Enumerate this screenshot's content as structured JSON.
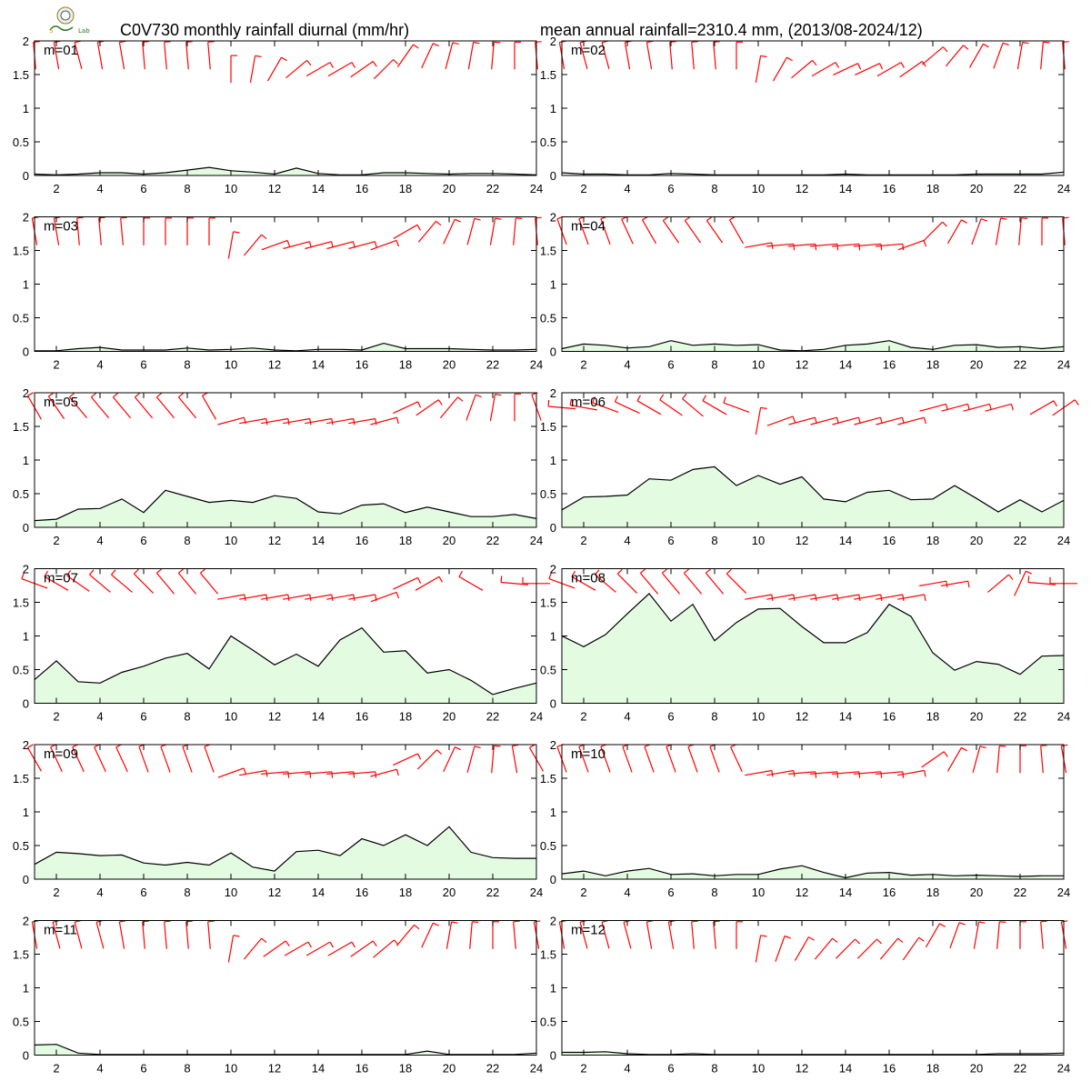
{
  "header": {
    "title_left": "C0V730 monthly rainfall diurnal (mm/hr)",
    "title_right": "mean annual rainfall=2310.4 mm, (2013/08-2024/12)"
  },
  "colors": {
    "rain_fill": "#e3fbe0",
    "rain_line": "#000000",
    "wind_barb": "#ff0000",
    "frame": "#000000"
  },
  "chart_data": {
    "type": "area",
    "title": "C0V730 monthly rainfall diurnal (mm/hr)",
    "subtitle": "mean annual rainfall=2310.4 mm, (2013/08-2024/12)",
    "x": [
      1,
      2,
      3,
      4,
      5,
      6,
      7,
      8,
      9,
      10,
      11,
      12,
      13,
      14,
      15,
      16,
      17,
      18,
      19,
      20,
      21,
      22,
      23,
      24
    ],
    "xticks": [
      2,
      4,
      6,
      8,
      10,
      12,
      14,
      16,
      18,
      20,
      22,
      24
    ],
    "xlim": [
      1,
      24
    ],
    "ylim": [
      0,
      2
    ],
    "yticks": [
      0,
      0.5,
      1,
      1.5,
      2
    ],
    "grid": false,
    "panels": [
      {
        "label": "m=01",
        "rain": [
          0.02,
          0.01,
          0.02,
          0.04,
          0.04,
          0.02,
          0.04,
          0.08,
          0.12,
          0.07,
          0.05,
          0.02,
          0.11,
          0.03,
          0.01,
          0.01,
          0.04,
          0.04,
          0.03,
          0.02,
          0.03,
          0.03,
          0.02,
          0.01
        ],
        "wind_dir": [
          355,
          350,
          345,
          350,
          350,
          355,
          355,
          355,
          355,
          0,
          10,
          30,
          50,
          60,
          60,
          55,
          45,
          35,
          25,
          15,
          10,
          5,
          0,
          355
        ]
      },
      {
        "label": "m=02",
        "rain": [
          0.04,
          0.02,
          0.02,
          0.01,
          0.01,
          0.03,
          0.02,
          0.01,
          0.01,
          0.01,
          0.01,
          0.01,
          0.01,
          0.02,
          0.01,
          0.01,
          0.01,
          0.01,
          0.01,
          0.02,
          0.02,
          0.02,
          0.02,
          0.05
        ],
        "wind_dir": [
          350,
          345,
          345,
          350,
          350,
          355,
          355,
          355,
          0,
          10,
          30,
          50,
          60,
          65,
          65,
          60,
          55,
          50,
          40,
          30,
          20,
          10,
          5,
          355
        ]
      },
      {
        "label": "m=03",
        "rain": [
          0.01,
          0.01,
          0.04,
          0.06,
          0.02,
          0.02,
          0.02,
          0.05,
          0.02,
          0.03,
          0.05,
          0.02,
          0.01,
          0.03,
          0.03,
          0.02,
          0.12,
          0.04,
          0.04,
          0.04,
          0.03,
          0.02,
          0.02,
          0.03
        ],
        "wind_dir": [
          350,
          350,
          355,
          355,
          355,
          0,
          0,
          0,
          0,
          10,
          40,
          70,
          75,
          75,
          75,
          75,
          70,
          60,
          40,
          25,
          15,
          10,
          5,
          355
        ]
      },
      {
        "label": "m=04",
        "rain": [
          0.04,
          0.11,
          0.09,
          0.05,
          0.07,
          0.16,
          0.09,
          0.11,
          0.09,
          0.1,
          0.02,
          0.01,
          0.03,
          0.09,
          0.11,
          0.16,
          0.06,
          0.03,
          0.09,
          0.1,
          0.06,
          0.07,
          0.04,
          0.07
        ],
        "wind_dir": [
          340,
          340,
          340,
          335,
          330,
          325,
          325,
          325,
          330,
          80,
          85,
          85,
          85,
          85,
          85,
          85,
          70,
          45,
          30,
          20,
          10,
          5,
          0,
          355
        ]
      },
      {
        "label": "m=05",
        "rain": [
          0.1,
          0.12,
          0.27,
          0.28,
          0.42,
          0.22,
          0.55,
          0.46,
          0.37,
          0.4,
          0.37,
          0.47,
          0.43,
          0.23,
          0.2,
          0.33,
          0.35,
          0.22,
          0.3,
          0.23,
          0.16,
          0.16,
          0.19,
          0.13
        ],
        "wind_dir": [
          330,
          325,
          320,
          320,
          320,
          320,
          320,
          320,
          330,
          75,
          80,
          80,
          80,
          80,
          80,
          80,
          75,
          65,
          55,
          40,
          20,
          10,
          0,
          340
        ]
      },
      {
        "label": "m=06",
        "rain": [
          0.26,
          0.45,
          0.46,
          0.48,
          0.72,
          0.7,
          0.86,
          0.9,
          0.62,
          0.77,
          0.64,
          0.75,
          0.42,
          0.38,
          0.52,
          0.55,
          0.41,
          0.42,
          0.62,
          0.43,
          0.23,
          0.41,
          0.23,
          0.4
        ],
        "wind_dir": [
          275,
          280,
          290,
          295,
          300,
          305,
          310,
          300,
          290,
          10,
          70,
          75,
          75,
          75,
          75,
          75,
          75,
          75,
          75,
          75,
          75,
          null,
          60,
          55
        ]
      },
      {
        "label": "m=07",
        "rain": [
          0.35,
          0.63,
          0.32,
          0.3,
          0.46,
          0.55,
          0.67,
          0.74,
          0.51,
          1.0,
          0.79,
          0.57,
          0.73,
          0.55,
          0.94,
          1.12,
          0.76,
          0.78,
          0.45,
          0.5,
          0.34,
          0.13,
          0.22,
          0.3
        ],
        "wind_dir": [
          290,
          300,
          305,
          310,
          310,
          315,
          320,
          320,
          320,
          80,
          80,
          80,
          80,
          80,
          80,
          80,
          70,
          65,
          60,
          null,
          300,
          null,
          275,
          270
        ]
      },
      {
        "label": "m=08",
        "rain": [
          1.0,
          0.84,
          1.02,
          1.33,
          1.63,
          1.22,
          1.47,
          0.93,
          1.2,
          1.4,
          1.41,
          1.14,
          0.9,
          0.9,
          1.05,
          1.47,
          1.29,
          0.75,
          0.49,
          0.62,
          0.58,
          0.43,
          0.7,
          0.71
        ],
        "wind_dir": [
          290,
          300,
          310,
          315,
          320,
          320,
          320,
          320,
          315,
          80,
          80,
          80,
          80,
          80,
          80,
          80,
          80,
          80,
          80,
          null,
          50,
          25,
          275,
          270
        ]
      },
      {
        "label": "m=09",
        "rain": [
          0.22,
          0.4,
          0.38,
          0.35,
          0.36,
          0.24,
          0.21,
          0.25,
          0.21,
          0.39,
          0.18,
          0.12,
          0.41,
          0.43,
          0.35,
          0.6,
          0.5,
          0.66,
          0.5,
          0.78,
          0.4,
          0.32,
          0.31,
          0.31
        ],
        "wind_dir": [
          330,
          335,
          335,
          335,
          335,
          340,
          340,
          340,
          340,
          70,
          80,
          85,
          85,
          85,
          85,
          85,
          75,
          65,
          45,
          25,
          15,
          5,
          350,
          330
        ]
      },
      {
        "label": "m=10",
        "rain": [
          0.08,
          0.12,
          0.05,
          0.12,
          0.16,
          0.07,
          0.08,
          0.05,
          0.07,
          0.07,
          0.15,
          0.2,
          0.1,
          0.02,
          0.09,
          0.1,
          0.06,
          0.07,
          0.05,
          0.06,
          0.05,
          0.04,
          0.05,
          0.05
        ],
        "wind_dir": [
          340,
          340,
          340,
          340,
          340,
          340,
          340,
          340,
          335,
          80,
          80,
          85,
          85,
          85,
          85,
          85,
          80,
          55,
          30,
          15,
          5,
          0,
          355,
          350
        ]
      },
      {
        "label": "m=11",
        "rain": [
          0.15,
          0.16,
          0.03,
          0.01,
          0.01,
          0.01,
          0.01,
          0.01,
          0.01,
          0.01,
          0.01,
          0.01,
          0.01,
          0.01,
          0.01,
          0.01,
          0.01,
          0.01,
          0.06,
          0.01,
          0.01,
          0.01,
          0.01,
          0.03
        ],
        "wind_dir": [
          350,
          345,
          345,
          345,
          350,
          355,
          355,
          355,
          355,
          10,
          40,
          55,
          60,
          60,
          60,
          55,
          50,
          40,
          25,
          10,
          5,
          0,
          355,
          350
        ]
      },
      {
        "label": "m=12",
        "rain": [
          0.04,
          0.04,
          0.05,
          0.02,
          0.01,
          0.01,
          0.02,
          0.01,
          0.01,
          0.01,
          0.01,
          0.01,
          0.01,
          0.01,
          0.01,
          0.01,
          0.01,
          0.01,
          0.01,
          0.01,
          0.02,
          0.02,
          0.02,
          0.03
        ],
        "wind_dir": [
          350,
          345,
          345,
          345,
          350,
          350,
          355,
          355,
          0,
          10,
          20,
          30,
          40,
          45,
          45,
          40,
          35,
          30,
          20,
          10,
          5,
          0,
          355,
          350
        ]
      }
    ]
  }
}
